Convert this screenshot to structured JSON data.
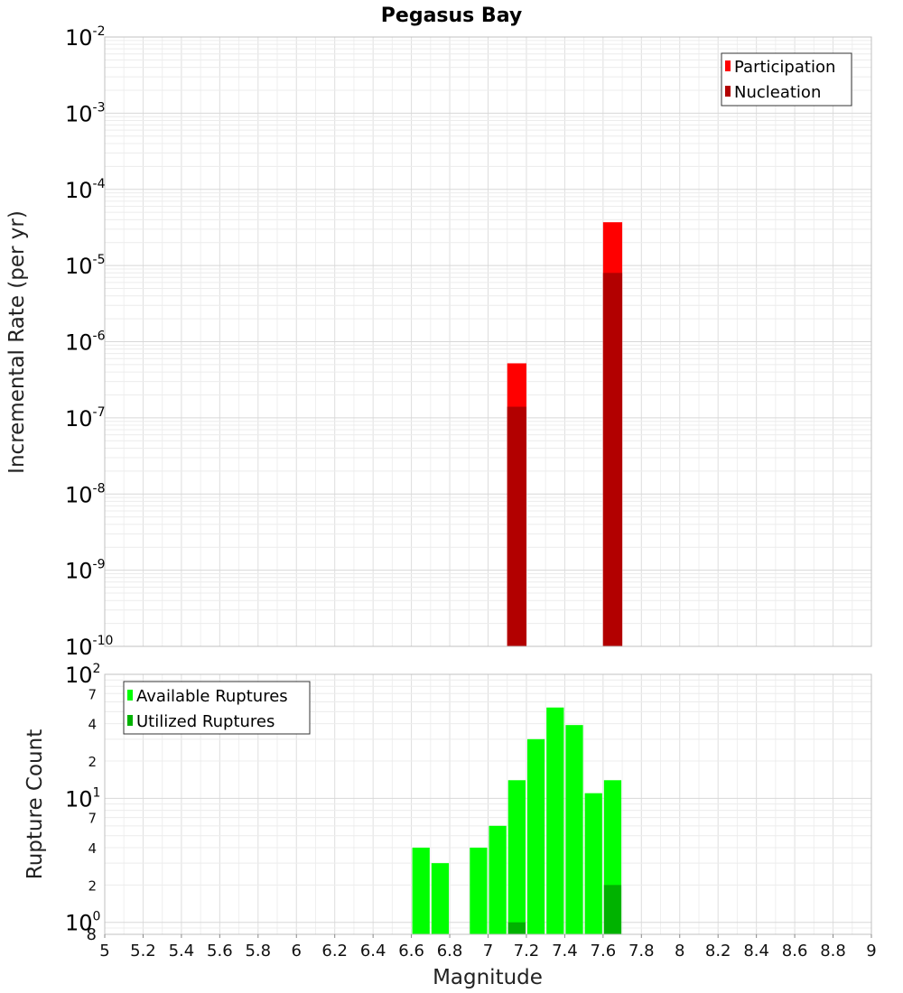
{
  "chart_data": [
    {
      "type": "bar",
      "title": "Pegasus Bay",
      "xlabel": "",
      "ylabel": "Incremental Rate (per yr)",
      "yscale": "log",
      "ylim": [
        1e-10,
        0.01
      ],
      "xlim": [
        5,
        9
      ],
      "x": [
        7.15,
        7.65
      ],
      "bar_width": 0.1,
      "series": [
        {
          "name": "Participation",
          "color": "#ff0000",
          "values": [
            5.2e-07,
            3.7e-05
          ]
        },
        {
          "name": "Nucleation",
          "color": "#b20000",
          "values": [
            1.4e-07,
            8e-06
          ]
        }
      ],
      "y_major_ticks": [
        {
          "base": "10",
          "exp": "-10",
          "value": 1e-10
        },
        {
          "base": "10",
          "exp": "-9",
          "value": 1e-09
        },
        {
          "base": "10",
          "exp": "-8",
          "value": 1e-08
        },
        {
          "base": "10",
          "exp": "-7",
          "value": 1e-07
        },
        {
          "base": "10",
          "exp": "-6",
          "value": 1e-06
        },
        {
          "base": "10",
          "exp": "-5",
          "value": 1e-05
        },
        {
          "base": "10",
          "exp": "-4",
          "value": 0.0001
        },
        {
          "base": "10",
          "exp": "-3",
          "value": 0.001
        },
        {
          "base": "10",
          "exp": "-2",
          "value": 0.01
        }
      ],
      "legend_position": "top-right",
      "grid": true
    },
    {
      "type": "bar",
      "xlabel": "Magnitude",
      "ylabel": "Rupture Count",
      "yscale": "log",
      "ylim": [
        0.8,
        100
      ],
      "xlim": [
        5,
        9
      ],
      "bar_width": 0.1,
      "series": [
        {
          "name": "Available Ruptures",
          "color": "#00ff00",
          "x": [
            6.65,
            6.75,
            6.95,
            7.05,
            7.15,
            7.25,
            7.35,
            7.45,
            7.55,
            7.65
          ],
          "values": [
            4,
            3,
            4,
            6,
            14,
            30,
            54,
            39,
            11,
            14
          ]
        },
        {
          "name": "Utilized Ruptures",
          "color": "#00b200",
          "x": [
            7.15,
            7.65
          ],
          "values": [
            1,
            2
          ]
        }
      ],
      "y_major_ticks": [
        {
          "base": "10",
          "exp": "0",
          "value": 1
        },
        {
          "base": "10",
          "exp": "1",
          "value": 10
        },
        {
          "base": "10",
          "exp": "2",
          "value": 100
        }
      ],
      "y_minor_labels": [
        {
          "label": "8",
          "value": 0.8
        },
        {
          "label": "2",
          "value": 2
        },
        {
          "label": "4",
          "value": 4
        },
        {
          "label": "7",
          "value": 7
        },
        {
          "label": "2",
          "value": 20
        },
        {
          "label": "4",
          "value": 40
        },
        {
          "label": "7",
          "value": 70
        }
      ],
      "x_ticks": [
        "5",
        "5.2",
        "5.4",
        "5.6",
        "5.8",
        "6",
        "6.2",
        "6.4",
        "6.6",
        "6.8",
        "7",
        "7.2",
        "7.4",
        "7.6",
        "7.8",
        "8",
        "8.2",
        "8.4",
        "8.6",
        "8.8",
        "9"
      ],
      "legend_position": "top-left",
      "grid": true
    }
  ]
}
